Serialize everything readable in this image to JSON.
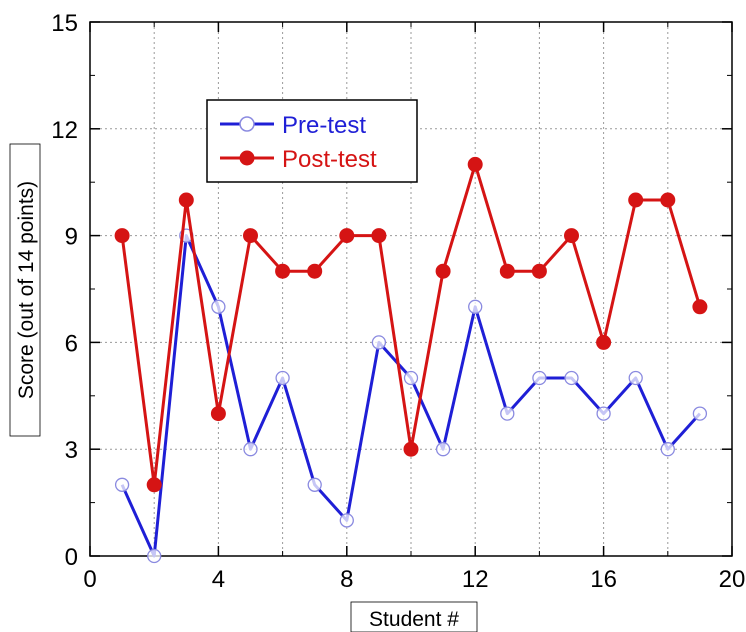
{
  "chart_data": {
    "type": "line",
    "xlabel": "Student #",
    "ylabel": "Score (out of 14 points)",
    "xlim": [
      0,
      20
    ],
    "ylim": [
      0,
      15
    ],
    "xticks": [
      0,
      4,
      8,
      12,
      16,
      20
    ],
    "yticks": [
      0,
      3,
      6,
      9,
      12,
      15
    ],
    "grid": true,
    "legend_position": "top-left",
    "series": [
      {
        "name": "Pre-test",
        "color": "#1f1fd6",
        "marker": "open-circle",
        "x": [
          1,
          2,
          3,
          4,
          5,
          6,
          7,
          8,
          9,
          10,
          11,
          12,
          13,
          14,
          15,
          16,
          17,
          18,
          19
        ],
        "values": [
          2,
          0,
          9,
          7,
          3,
          5,
          2,
          1,
          6,
          5,
          3,
          7,
          4,
          5,
          5,
          4,
          5,
          3,
          4
        ]
      },
      {
        "name": "Post-test",
        "color": "#d51414",
        "marker": "filled-circle",
        "x": [
          1,
          2,
          3,
          4,
          5,
          6,
          7,
          8,
          9,
          10,
          11,
          12,
          13,
          14,
          15,
          16,
          17,
          18,
          19
        ],
        "values": [
          9,
          2,
          10,
          4,
          9,
          8,
          8,
          9,
          9,
          3,
          8,
          11,
          8,
          8,
          9,
          6,
          10,
          10,
          7
        ]
      }
    ]
  }
}
